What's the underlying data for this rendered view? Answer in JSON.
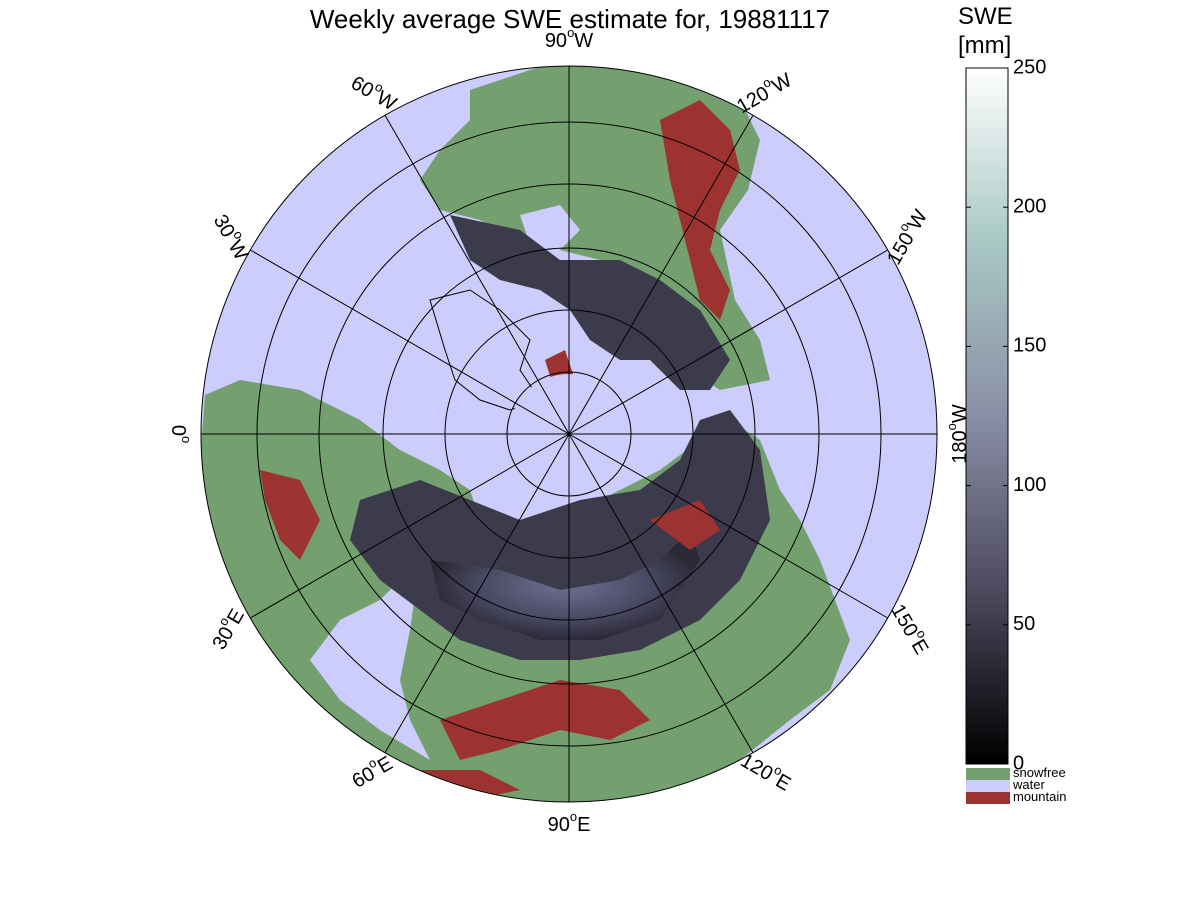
{
  "title": "Weekly average SWE estimate for, 19881117",
  "colorbar": {
    "title_line1": "SWE",
    "title_line2": "[mm]",
    "min": 0,
    "max": 250,
    "ticks": [
      0,
      50,
      100,
      150,
      200,
      250
    ],
    "colors": [
      "#000000",
      "#4d4a5e",
      "#8a8fa6",
      "#a8c8c4",
      "#ffffff"
    ]
  },
  "legend": [
    {
      "label": "snowfree",
      "color": "#74a070"
    },
    {
      "label": "water",
      "color": "#cccdfd"
    },
    {
      "label": "mountain",
      "color": "#9c3330"
    }
  ],
  "map": {
    "projection": "polar stereographic, north pole centred",
    "ocean_color": "#cccdfd",
    "land_color": "#74a070",
    "snow_color": "#3c3b4c",
    "mountain_color": "#9c3330",
    "lon_labels": [
      {
        "text": "90",
        "unit": "W",
        "deg": 90
      },
      {
        "text": "120",
        "unit": "W",
        "deg": 120
      },
      {
        "text": "150",
        "unit": "W",
        "deg": 150
      },
      {
        "text": "180",
        "unit": "W",
        "deg": 180
      },
      {
        "text": "150",
        "unit": "E",
        "deg": 210
      },
      {
        "text": "120",
        "unit": "E",
        "deg": 240
      },
      {
        "text": "90",
        "unit": "E",
        "deg": 270
      },
      {
        "text": "60",
        "unit": "E",
        "deg": 300
      },
      {
        "text": "30",
        "unit": "E",
        "deg": 330
      },
      {
        "text": "0",
        "unit": "",
        "deg": 0
      },
      {
        "text": "30",
        "unit": "W",
        "deg": 30
      },
      {
        "text": "60",
        "unit": "W",
        "deg": 60
      }
    ]
  }
}
